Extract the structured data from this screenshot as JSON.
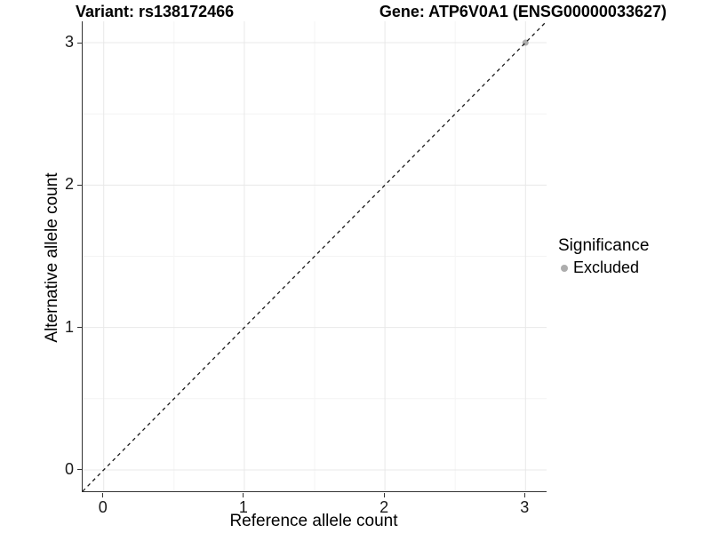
{
  "chart_data": {
    "type": "scatter",
    "title_left": "Variant: rs138172466",
    "title_right": "Gene: ATP6V0A1 (ENSG00000033627)",
    "xlabel": "Reference allele count",
    "ylabel": "Alternative allele count",
    "xlim": [
      -0.15,
      3.15
    ],
    "ylim": [
      -0.15,
      3.15
    ],
    "x_ticks": [
      0,
      1,
      2,
      3
    ],
    "y_ticks": [
      0,
      1,
      2,
      3
    ],
    "minor_breaks": [
      0.5,
      1.5,
      2.5
    ],
    "grid": "major+minor",
    "points": [
      {
        "x": 3,
        "y": 3,
        "series": "Excluded"
      }
    ],
    "reference_line": {
      "style": "dashed",
      "slope": 1,
      "intercept": 0
    },
    "legend": {
      "title": "Significance",
      "position": "right",
      "items": [
        {
          "label": "Excluded",
          "color": "#adadad"
        }
      ]
    },
    "colors": {
      "grid_major": "#e8e8e8",
      "grid_minor": "#f4f4f4",
      "axis_line": "#333333",
      "reference_line": "#1a1a1a",
      "point": "#adadad",
      "text": "#000000"
    }
  }
}
